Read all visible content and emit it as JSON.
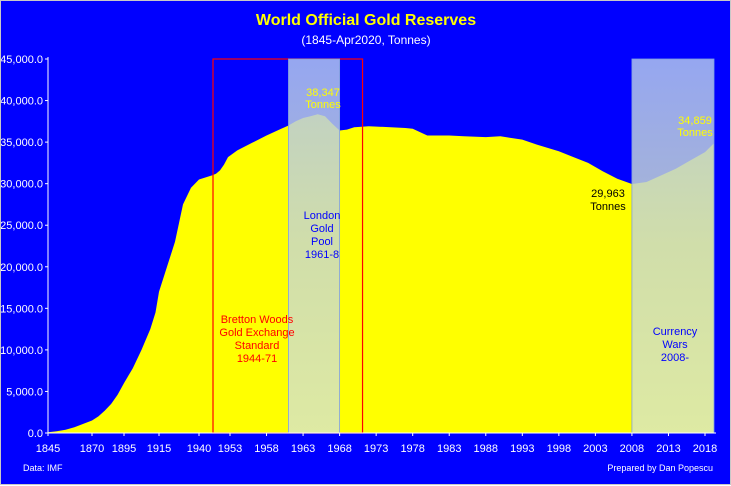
{
  "chart_data": {
    "type": "area",
    "title": "World Official Gold Reserves",
    "subtitle": "(1845-Apr2020, Tonnes)",
    "xlabel": "",
    "ylabel": "",
    "ylim": [
      0,
      45000
    ],
    "xlim": [
      1845,
      2020
    ],
    "yticks": [
      "0.0",
      "5,000.0",
      "10,000.0",
      "15,000.0",
      "20,000.0",
      "25,000.0",
      "30,000.0",
      "35,000.0",
      "40,000.0",
      "45,000.0"
    ],
    "ytick_values": [
      0,
      5000,
      10000,
      15000,
      20000,
      25000,
      30000,
      35000,
      40000,
      45000
    ],
    "xticks": [
      "1845",
      "1870",
      "1895",
      "1915",
      "1940",
      "1953",
      "1958",
      "1963",
      "1968",
      "1973",
      "1978",
      "1983",
      "1988",
      "1993",
      "1998",
      "2003",
      "2008",
      "2013",
      "2018"
    ],
    "grid": false,
    "legend": "none",
    "colors": {
      "background": "#0000ff",
      "area": "#ffff00",
      "title": "#ffff00",
      "text": "#ffffff",
      "bretton": "#ff0000",
      "shade": "#c8ddc8"
    },
    "series": [
      {
        "points": [
          [
            1845,
            100
          ],
          [
            1850,
            200
          ],
          [
            1855,
            400
          ],
          [
            1860,
            700
          ],
          [
            1865,
            1100
          ],
          [
            1870,
            1500
          ],
          [
            1875,
            2000
          ],
          [
            1880,
            2700
          ],
          [
            1885,
            3500
          ],
          [
            1890,
            4600
          ],
          [
            1895,
            6000
          ],
          [
            1900,
            7800
          ],
          [
            1905,
            10000
          ],
          [
            1910,
            12500
          ],
          [
            1913,
            14500
          ],
          [
            1915,
            17000
          ],
          [
            1920,
            20000
          ],
          [
            1925,
            23000
          ],
          [
            1930,
            27500
          ],
          [
            1935,
            29500
          ],
          [
            1940,
            30500
          ],
          [
            1944,
            31000
          ],
          [
            1946,
            31200
          ],
          [
            1948,
            31600
          ],
          [
            1950,
            32300
          ],
          [
            1952,
            33200
          ],
          [
            1954,
            34000
          ],
          [
            1956,
            34900
          ],
          [
            1958,
            35800
          ],
          [
            1960,
            36600
          ],
          [
            1961,
            37000
          ],
          [
            1962,
            37500
          ],
          [
            1963,
            37900
          ],
          [
            1964,
            38100
          ],
          [
            1965,
            38347
          ],
          [
            1966,
            38100
          ],
          [
            1967,
            37200
          ],
          [
            1968,
            36400
          ],
          [
            1969,
            36500
          ],
          [
            1970,
            36800
          ],
          [
            1972,
            36900
          ],
          [
            1975,
            36800
          ],
          [
            1977,
            36700
          ],
          [
            1978,
            36600
          ],
          [
            1980,
            35800
          ],
          [
            1983,
            35800
          ],
          [
            1985,
            35700
          ],
          [
            1988,
            35600
          ],
          [
            1990,
            35700
          ],
          [
            1993,
            35300
          ],
          [
            1995,
            34700
          ],
          [
            1998,
            33900
          ],
          [
            2000,
            33200
          ],
          [
            2002,
            32500
          ],
          [
            2004,
            31500
          ],
          [
            2006,
            30600
          ],
          [
            2008,
            29963
          ],
          [
            2010,
            30200
          ],
          [
            2012,
            31000
          ],
          [
            2014,
            31800
          ],
          [
            2016,
            32800
          ],
          [
            2018,
            33800
          ],
          [
            2020,
            34859
          ]
        ]
      }
    ],
    "annotations": [
      {
        "id": "bretton",
        "lines": [
          "Bretton Woods",
          "Gold Exchange",
          "Standard",
          "1944-71"
        ]
      },
      {
        "id": "london",
        "lines": [
          "London",
          "Gold",
          "Pool",
          "1961-8"
        ]
      },
      {
        "id": "currency",
        "lines": [
          "Currency",
          "Wars",
          "2008-"
        ]
      },
      {
        "id": "peak",
        "lines": [
          "38,347",
          "Tonnes"
        ]
      },
      {
        "id": "low",
        "lines": [
          "29,963",
          "Tonnes"
        ]
      },
      {
        "id": "latest",
        "lines": [
          "34,859",
          "Tonnes"
        ]
      }
    ],
    "shaded_regions": [
      {
        "id": "bretton",
        "from": 1944,
        "to": 1971,
        "style": "outline"
      },
      {
        "id": "london",
        "from": 1961,
        "to": 1968,
        "style": "fill"
      },
      {
        "id": "currency",
        "from": 2008,
        "to": 2020,
        "style": "fill"
      }
    ]
  },
  "footer": {
    "source": "Data: IMF",
    "credit": "Prepared by Dan Popescu"
  }
}
